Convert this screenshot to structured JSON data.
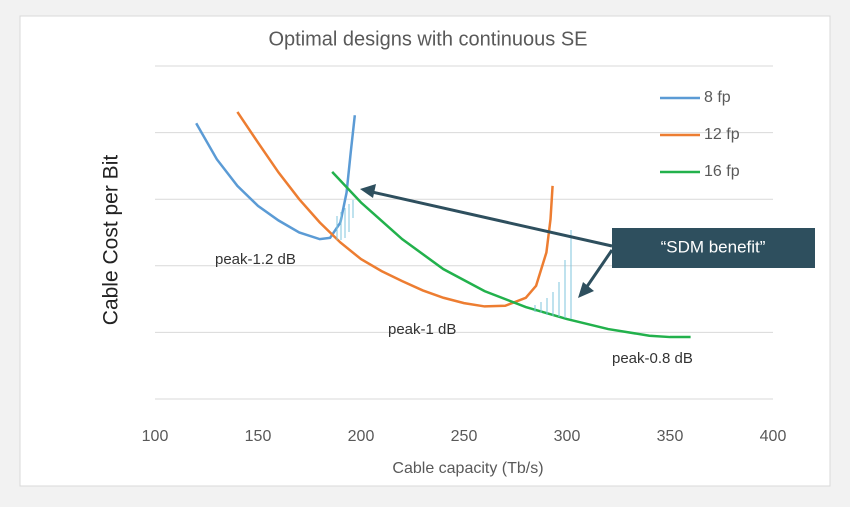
{
  "chart_data": {
    "type": "line",
    "title": "Optimal designs with continuous SE",
    "x_label": "Cable capacity (Tb/s)",
    "y_label": "Cable Cost per Bit",
    "xlim": [
      100,
      400
    ],
    "xticks": [
      100,
      150,
      200,
      250,
      300,
      350,
      400
    ],
    "ylim": [
      0,
      5
    ],
    "yticks": [
      0,
      1,
      2,
      3,
      4,
      5
    ],
    "grid": true,
    "legend": "top-right",
    "series": [
      {
        "name": "8 fp",
        "color": "#5b9bd5",
        "x": [
          120,
          130,
          140,
          150,
          160,
          170,
          180,
          185,
          190,
          193,
          195,
          197
        ],
        "values": [
          4.14,
          3.6,
          3.2,
          2.9,
          2.68,
          2.5,
          2.4,
          2.42,
          2.65,
          3.1,
          3.7,
          4.26
        ]
      },
      {
        "name": "12 fp",
        "color": "#ed7d31",
        "x": [
          140,
          150,
          160,
          170,
          180,
          190,
          200,
          210,
          220,
          230,
          240,
          250,
          260,
          270,
          280,
          285,
          290,
          292,
          293
        ],
        "values": [
          4.31,
          3.85,
          3.4,
          3.0,
          2.65,
          2.35,
          2.1,
          1.92,
          1.77,
          1.63,
          1.52,
          1.44,
          1.39,
          1.4,
          1.52,
          1.7,
          2.2,
          2.7,
          3.2
        ]
      },
      {
        "name": "16 fp",
        "color": "#22b14c",
        "x": [
          186,
          200,
          220,
          240,
          260,
          280,
          300,
          320,
          340,
          350,
          360
        ],
        "values": [
          3.41,
          2.95,
          2.4,
          1.95,
          1.62,
          1.38,
          1.2,
          1.05,
          0.95,
          0.93,
          0.93
        ]
      }
    ],
    "annotations": [
      "peak-1.2 dB",
      "peak-1 dB",
      "peak-0.8 dB",
      "“SDM benefit”"
    ]
  }
}
